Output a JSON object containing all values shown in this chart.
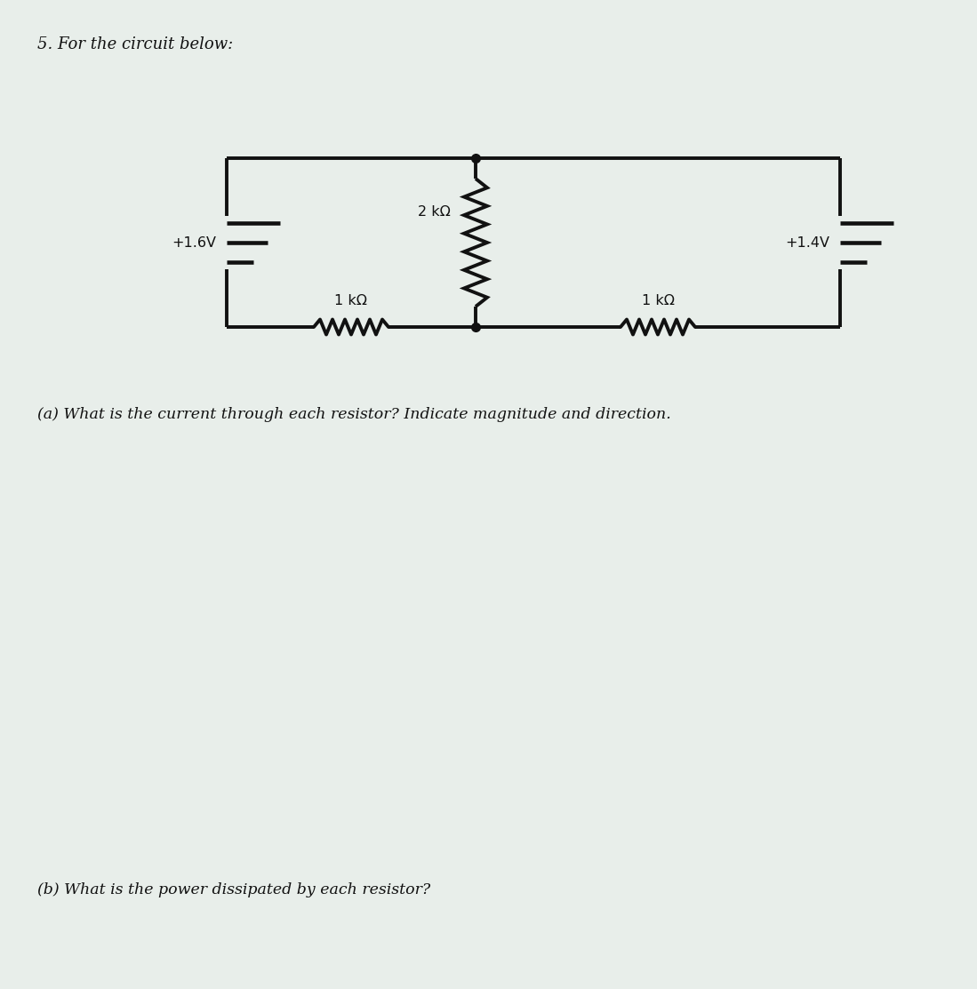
{
  "title": "5. For the circuit below:",
  "question_a": "(a) What is the current through each resistor? Indicate magnitude and direction.",
  "question_b": "(b) What is the power dissipated by each resistor?",
  "bg_color": "#e8eeea",
  "line_color": "#111111",
  "text_color": "#111111",
  "v1_label": "+1.6V",
  "v2_label": "+1.4V",
  "r1_label": "1 kΩ",
  "r2_label": "2 kΩ",
  "r3_label": "1 kΩ",
  "title_fontsize": 13,
  "label_fontsize": 11.5,
  "question_fontsize": 12.5,
  "lw": 2.8
}
